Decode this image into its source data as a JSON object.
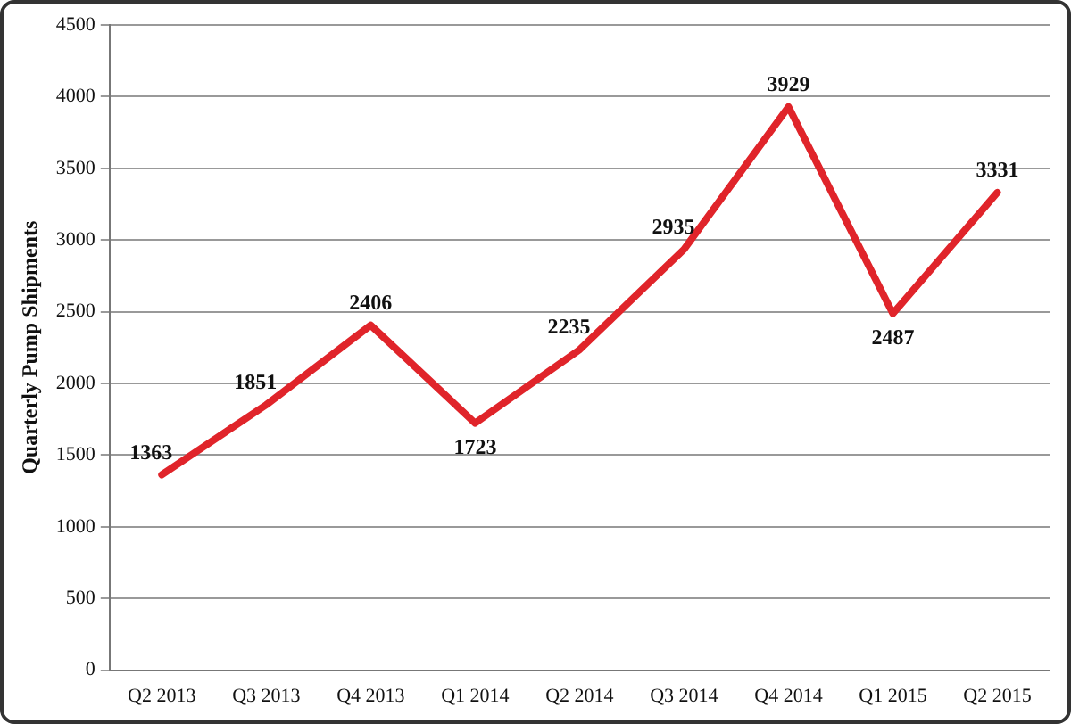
{
  "chart_data": {
    "type": "line",
    "ylabel": "Quarterly Pump Shipments",
    "categories": [
      "Q2 2013",
      "Q3 2013",
      "Q4 2013",
      "Q1 2014",
      "Q2 2014",
      "Q3 2014",
      "Q4 2014",
      "Q1 2015",
      "Q2 2015"
    ],
    "series": [
      {
        "color": "#e0242a",
        "values": [
          1363,
          1851,
          2406,
          1723,
          2235,
          2935,
          3929,
          2487,
          3331
        ]
      }
    ],
    "ylim": [
      0,
      4500
    ],
    "yticks": [
      0,
      500,
      1000,
      1500,
      2000,
      2500,
      3000,
      3500,
      4000,
      4500
    ],
    "grid": "y",
    "data_labels": true,
    "marker": "none",
    "line_style": "solid"
  }
}
